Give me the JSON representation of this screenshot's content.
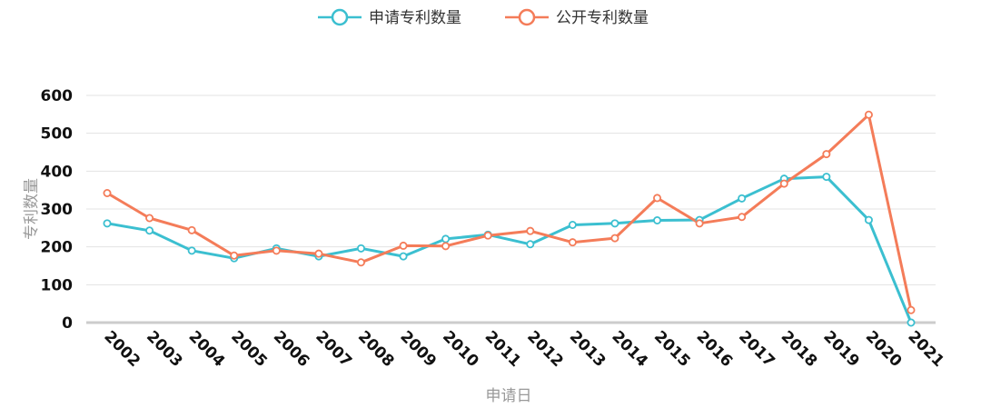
{
  "chart_data": {
    "type": "line",
    "xlabel": "申请日",
    "ylabel": "专利数量",
    "ylim": [
      0,
      600
    ],
    "yticks": [
      "0",
      "100",
      "200",
      "300",
      "400",
      "500",
      "600"
    ],
    "categories": [
      "2002",
      "2003",
      "2004",
      "2005",
      "2006",
      "2007",
      "2008",
      "2009",
      "2010",
      "2011",
      "2012",
      "2013",
      "2014",
      "2015",
      "2016",
      "2017",
      "2018",
      "2019",
      "2020",
      "2021"
    ],
    "series": [
      {
        "name": "申请专利数量",
        "color": "#3bbfd0",
        "values": [
          262,
          243,
          190,
          170,
          196,
          175,
          196,
          175,
          221,
          232,
          207,
          258,
          262,
          270,
          271,
          328,
          380,
          385,
          271,
          0
        ]
      },
      {
        "name": "公开专利数量",
        "color": "#f47c59",
        "values": [
          342,
          276,
          244,
          177,
          190,
          182,
          159,
          203,
          202,
          230,
          242,
          212,
          223,
          329,
          262,
          279,
          367,
          445,
          549,
          33
        ]
      }
    ],
    "grid": true,
    "legend_position": "top-center"
  }
}
